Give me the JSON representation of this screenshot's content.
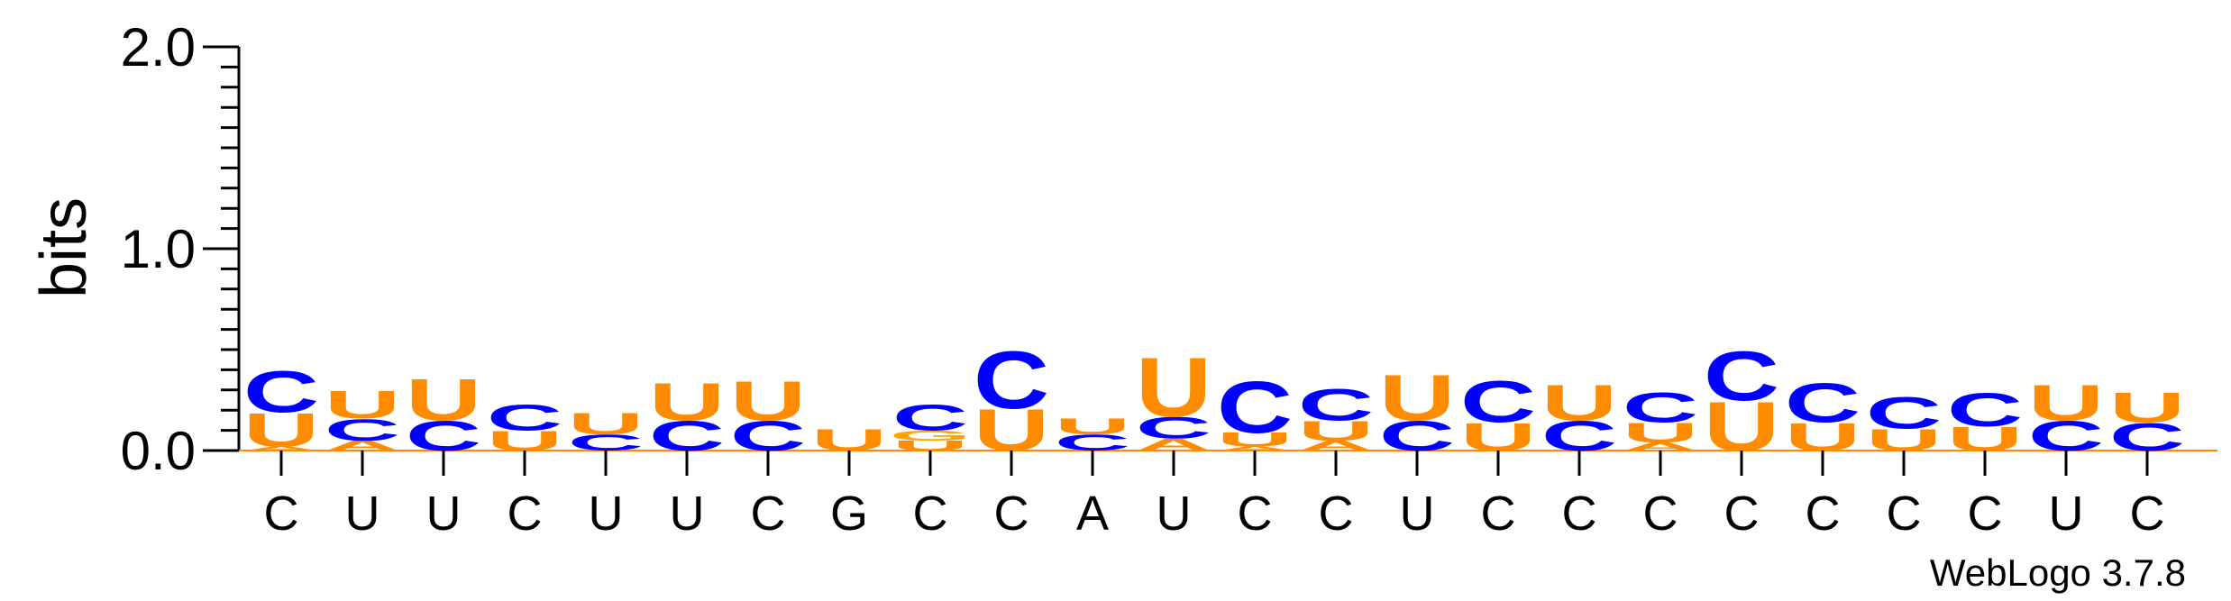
{
  "chart_data": {
    "type": "sequence_logo",
    "ylabel": "bits",
    "ylim": [
      0,
      2.0
    ],
    "yticks": [
      "0.0",
      "1.0",
      "2.0"
    ],
    "xlabels": [
      "C",
      "U",
      "U",
      "C",
      "U",
      "U",
      "C",
      "G",
      "C",
      "C",
      "A",
      "U",
      "C",
      "C",
      "U",
      "C",
      "C",
      "C",
      "C",
      "C",
      "C",
      "C",
      "U",
      "C"
    ],
    "colors": {
      "C": "#0000ff",
      "U": "#ff8c00",
      "G": "#ffa500",
      "A": "#ff8c00"
    },
    "positions": [
      {
        "stack": [
          {
            "letter": "A",
            "height": 0.02
          },
          {
            "letter": "U",
            "height": 0.17
          },
          {
            "letter": "C",
            "height": 0.21
          }
        ]
      },
      {
        "stack": [
          {
            "letter": "A",
            "height": 0.05
          },
          {
            "letter": "C",
            "height": 0.11
          },
          {
            "letter": "U",
            "height": 0.14
          }
        ]
      },
      {
        "stack": [
          {
            "letter": "C",
            "height": 0.15
          },
          {
            "letter": "U",
            "height": 0.21
          }
        ]
      },
      {
        "stack": [
          {
            "letter": "U",
            "height": 0.1
          },
          {
            "letter": "C",
            "height": 0.13
          }
        ]
      },
      {
        "stack": [
          {
            "letter": "C",
            "height": 0.08
          },
          {
            "letter": "U",
            "height": 0.11
          }
        ]
      },
      {
        "stack": [
          {
            "letter": "C",
            "height": 0.15
          },
          {
            "letter": "U",
            "height": 0.19
          }
        ]
      },
      {
        "stack": [
          {
            "letter": "C",
            "height": 0.15
          },
          {
            "letter": "U",
            "height": 0.2
          }
        ]
      },
      {
        "stack": [
          {
            "letter": "U",
            "height": 0.11
          }
        ]
      },
      {
        "stack": [
          {
            "letter": "U",
            "height": 0.05
          },
          {
            "letter": "G",
            "height": 0.05
          },
          {
            "letter": "C",
            "height": 0.13
          }
        ]
      },
      {
        "stack": [
          {
            "letter": "U",
            "height": 0.21
          },
          {
            "letter": "C",
            "height": 0.29
          }
        ]
      },
      {
        "stack": [
          {
            "letter": "C",
            "height": 0.08
          },
          {
            "letter": "U",
            "height": 0.08
          }
        ]
      },
      {
        "stack": [
          {
            "letter": "A",
            "height": 0.06
          },
          {
            "letter": "C",
            "height": 0.11
          },
          {
            "letter": "U",
            "height": 0.3
          }
        ]
      },
      {
        "stack": [
          {
            "letter": "A",
            "height": 0.02
          },
          {
            "letter": "U",
            "height": 0.07
          },
          {
            "letter": "C",
            "height": 0.26
          }
        ]
      },
      {
        "stack": [
          {
            "letter": "A",
            "height": 0.05
          },
          {
            "letter": "U",
            "height": 0.1
          },
          {
            "letter": "C",
            "height": 0.16
          }
        ]
      },
      {
        "stack": [
          {
            "letter": "C",
            "height": 0.15
          },
          {
            "letter": "U",
            "height": 0.23
          }
        ]
      },
      {
        "stack": [
          {
            "letter": "U",
            "height": 0.14
          },
          {
            "letter": "C",
            "height": 0.21
          }
        ]
      },
      {
        "stack": [
          {
            "letter": "C",
            "height": 0.15
          },
          {
            "letter": "U",
            "height": 0.18
          }
        ]
      },
      {
        "stack": [
          {
            "letter": "A",
            "height": 0.04
          },
          {
            "letter": "U",
            "height": 0.1
          },
          {
            "letter": "C",
            "height": 0.15
          }
        ]
      },
      {
        "stack": [
          {
            "letter": "U",
            "height": 0.25
          },
          {
            "letter": "C",
            "height": 0.25
          }
        ]
      },
      {
        "stack": [
          {
            "letter": "U",
            "height": 0.14
          },
          {
            "letter": "C",
            "height": 0.2
          }
        ]
      },
      {
        "stack": [
          {
            "letter": "U",
            "height": 0.11
          },
          {
            "letter": "C",
            "height": 0.16
          }
        ]
      },
      {
        "stack": [
          {
            "letter": "U",
            "height": 0.12
          },
          {
            "letter": "C",
            "height": 0.17
          }
        ]
      },
      {
        "stack": [
          {
            "letter": "C",
            "height": 0.15
          },
          {
            "letter": "U",
            "height": 0.18
          }
        ]
      },
      {
        "stack": [
          {
            "letter": "C",
            "height": 0.14
          },
          {
            "letter": "U",
            "height": 0.15
          }
        ]
      }
    ]
  },
  "credit": "WebLogo 3.7.8"
}
